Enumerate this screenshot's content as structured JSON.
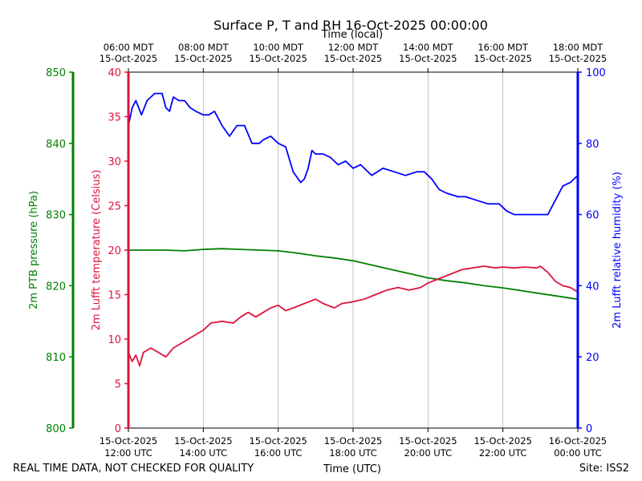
{
  "chart_data": {
    "type": "line",
    "title": "Surface P, T and RH 16-Oct-2025 00:00:00",
    "xlabel_bottom": "Time (UTC)",
    "xlabel_top": "Time (local)",
    "x_unit": "hours UTC",
    "x_range": [
      12.0,
      24.0
    ],
    "bottom_ticks": [
      {
        "x": 12,
        "line1": "15-Oct-2025",
        "line2": "12:00 UTC"
      },
      {
        "x": 14,
        "line1": "15-Oct-2025",
        "line2": "14:00 UTC"
      },
      {
        "x": 16,
        "line1": "15-Oct-2025",
        "line2": "16:00 UTC"
      },
      {
        "x": 18,
        "line1": "15-Oct-2025",
        "line2": "18:00 UTC"
      },
      {
        "x": 20,
        "line1": "15-Oct-2025",
        "line2": "20:00 UTC"
      },
      {
        "x": 22,
        "line1": "15-Oct-2025",
        "line2": "22:00 UTC"
      },
      {
        "x": 24,
        "line1": "16-Oct-2025",
        "line2": "00:00 UTC"
      }
    ],
    "top_ticks": [
      {
        "x": 12,
        "line1": "06:00 MDT",
        "line2": "15-Oct-2025"
      },
      {
        "x": 14,
        "line1": "08:00 MDT",
        "line2": "15-Oct-2025"
      },
      {
        "x": 16,
        "line1": "10:00 MDT",
        "line2": "15-Oct-2025"
      },
      {
        "x": 18,
        "line1": "12:00 MDT",
        "line2": "15-Oct-2025"
      },
      {
        "x": 20,
        "line1": "14:00 MDT",
        "line2": "15-Oct-2025"
      },
      {
        "x": 22,
        "line1": "16:00 MDT",
        "line2": "15-Oct-2025"
      },
      {
        "x": 24,
        "line1": "18:00 MDT",
        "line2": "15-Oct-2025"
      }
    ],
    "axes": {
      "pressure": {
        "label": "2m PTB pressure (hPa)",
        "range": [
          800,
          850
        ],
        "ticks": [
          800,
          810,
          820,
          830,
          840,
          850
        ],
        "color": "#008000"
      },
      "temperature": {
        "label": "2m Lufft temperature (Celsius)",
        "range": [
          0,
          40
        ],
        "ticks": [
          0,
          5,
          10,
          15,
          20,
          25,
          30,
          35,
          40
        ],
        "color": "#dc143c"
      },
      "humidity": {
        "label": "2m Lufft relative humidity (%)",
        "range": [
          0,
          100
        ],
        "ticks": [
          0,
          20,
          40,
          60,
          80,
          100
        ],
        "color": "#0000ff"
      }
    },
    "grid": "vertical",
    "series": [
      {
        "key": "humidity",
        "axis": "humidity",
        "color": "#0000ff",
        "x": [
          12.0,
          12.1,
          12.2,
          12.35,
          12.5,
          12.7,
          12.9,
          13.0,
          13.1,
          13.2,
          13.35,
          13.5,
          13.65,
          13.8,
          14.0,
          14.15,
          14.3,
          14.5,
          14.7,
          14.9,
          15.1,
          15.3,
          15.5,
          15.6,
          15.8,
          16.0,
          16.2,
          16.4,
          16.6,
          16.7,
          16.8,
          16.9,
          17.0,
          17.2,
          17.4,
          17.6,
          17.8,
          18.0,
          18.2,
          18.5,
          18.8,
          19.1,
          19.4,
          19.7,
          19.9,
          20.1,
          20.3,
          20.5,
          20.8,
          21.0,
          21.3,
          21.6,
          21.9,
          22.1,
          22.3,
          22.6,
          22.9,
          23.0,
          23.2,
          23.4,
          23.6,
          23.8,
          24.0
        ],
        "values": [
          85,
          90,
          92,
          88,
          92,
          94,
          94,
          90,
          89,
          93,
          92,
          92,
          90,
          89,
          88,
          88,
          89,
          85,
          82,
          85,
          85,
          80,
          80,
          81,
          82,
          80,
          79,
          72,
          69,
          70,
          73,
          78,
          77,
          77,
          76,
          74,
          75,
          73,
          74,
          71,
          73,
          72,
          71,
          72,
          72,
          70,
          67,
          66,
          65,
          65,
          64,
          63,
          63,
          61,
          60,
          60,
          60,
          60,
          60,
          64,
          68,
          69,
          71
        ]
      },
      {
        "key": "pressure",
        "axis": "pressure",
        "color": "#008000",
        "x": [
          12.0,
          12.5,
          13.0,
          13.5,
          14.0,
          14.5,
          15.0,
          15.5,
          16.0,
          16.5,
          17.0,
          17.5,
          18.0,
          18.5,
          19.0,
          19.5,
          20.0,
          20.5,
          21.0,
          21.5,
          22.0,
          22.5,
          23.0,
          23.5,
          24.0
        ],
        "values": [
          825.0,
          825.0,
          825.0,
          824.9,
          825.1,
          825.2,
          825.1,
          825.0,
          824.9,
          824.6,
          824.2,
          823.9,
          823.5,
          822.9,
          822.3,
          821.7,
          821.1,
          820.7,
          820.4,
          820.0,
          819.7,
          819.3,
          818.9,
          818.5,
          818.1
        ]
      },
      {
        "key": "temperature",
        "axis": "temperature",
        "color": "#dc143c",
        "x": [
          12.0,
          12.1,
          12.2,
          12.3,
          12.4,
          12.6,
          12.8,
          13.0,
          13.2,
          13.4,
          13.6,
          13.8,
          14.0,
          14.2,
          14.5,
          14.8,
          15.0,
          15.2,
          15.4,
          15.6,
          15.8,
          16.0,
          16.2,
          16.4,
          16.7,
          17.0,
          17.2,
          17.5,
          17.7,
          18.0,
          18.3,
          18.6,
          18.9,
          19.2,
          19.5,
          19.8,
          20.0,
          20.3,
          20.6,
          20.9,
          21.2,
          21.5,
          21.8,
          22.0,
          22.3,
          22.6,
          22.9,
          23.0,
          23.2,
          23.4,
          23.6,
          23.8,
          24.0
        ],
        "values": [
          8.5,
          7.5,
          8.2,
          7.0,
          8.5,
          9.0,
          8.5,
          8.0,
          9.0,
          9.5,
          10.0,
          10.5,
          11.0,
          11.8,
          12.0,
          11.8,
          12.5,
          13.0,
          12.5,
          13.0,
          13.5,
          13.8,
          13.2,
          13.5,
          14.0,
          14.5,
          14.0,
          13.5,
          14.0,
          14.2,
          14.5,
          15.0,
          15.5,
          15.8,
          15.5,
          15.8,
          16.3,
          16.8,
          17.3,
          17.8,
          18.0,
          18.2,
          18.0,
          18.1,
          18.0,
          18.1,
          18.0,
          18.2,
          17.5,
          16.5,
          16.0,
          15.8,
          15.3
        ]
      }
    ]
  },
  "footer": {
    "quality_notice": "REAL TIME DATA, NOT CHECKED FOR QUALITY",
    "site": "Site: ISS2"
  }
}
